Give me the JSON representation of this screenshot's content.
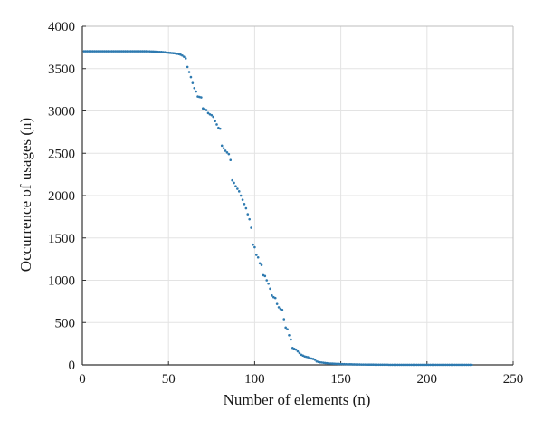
{
  "chart_data": {
    "type": "scatter",
    "title": "",
    "xlabel": "Number of elements (n)",
    "ylabel": "Occurrence of usages (n)",
    "xlim": [
      0,
      250
    ],
    "ylim": [
      0,
      4000
    ],
    "xticks": [
      0,
      50,
      100,
      150,
      200,
      250
    ],
    "yticks": [
      0,
      500,
      1000,
      1500,
      2000,
      2500,
      3000,
      3500,
      4000
    ],
    "grid": true,
    "marker_color": "#2e7ab0",
    "series": [
      {
        "name": "",
        "points": [
          [
            1,
            3705
          ],
          [
            2,
            3705
          ],
          [
            3,
            3705
          ],
          [
            4,
            3705
          ],
          [
            5,
            3705
          ],
          [
            6,
            3705
          ],
          [
            7,
            3705
          ],
          [
            8,
            3705
          ],
          [
            9,
            3705
          ],
          [
            10,
            3705
          ],
          [
            11,
            3705
          ],
          [
            12,
            3705
          ],
          [
            13,
            3705
          ],
          [
            14,
            3705
          ],
          [
            15,
            3705
          ],
          [
            16,
            3705
          ],
          [
            17,
            3705
          ],
          [
            18,
            3705
          ],
          [
            19,
            3705
          ],
          [
            20,
            3705
          ],
          [
            21,
            3705
          ],
          [
            22,
            3705
          ],
          [
            23,
            3705
          ],
          [
            24,
            3705
          ],
          [
            25,
            3705
          ],
          [
            26,
            3705
          ],
          [
            27,
            3705
          ],
          [
            28,
            3705
          ],
          [
            29,
            3705
          ],
          [
            30,
            3705
          ],
          [
            31,
            3705
          ],
          [
            32,
            3705
          ],
          [
            33,
            3705
          ],
          [
            34,
            3705
          ],
          [
            35,
            3705
          ],
          [
            36,
            3705
          ],
          [
            37,
            3705
          ],
          [
            38,
            3704
          ],
          [
            39,
            3704
          ],
          [
            40,
            3703
          ],
          [
            41,
            3702
          ],
          [
            42,
            3701
          ],
          [
            43,
            3700
          ],
          [
            44,
            3699
          ],
          [
            45,
            3698
          ],
          [
            46,
            3697
          ],
          [
            47,
            3695
          ],
          [
            48,
            3693
          ],
          [
            49,
            3690
          ],
          [
            50,
            3688
          ],
          [
            51,
            3686
          ],
          [
            52,
            3684
          ],
          [
            53,
            3682
          ],
          [
            54,
            3680
          ],
          [
            55,
            3676
          ],
          [
            56,
            3672
          ],
          [
            57,
            3665
          ],
          [
            58,
            3655
          ],
          [
            59,
            3640
          ],
          [
            60,
            3620
          ],
          [
            61,
            3520
          ],
          [
            62,
            3460
          ],
          [
            63,
            3400
          ],
          [
            64,
            3330
          ],
          [
            65,
            3270
          ],
          [
            66,
            3230
          ],
          [
            67,
            3170
          ],
          [
            68,
            3165
          ],
          [
            69,
            3160
          ],
          [
            70,
            3030
          ],
          [
            71,
            3020
          ],
          [
            72,
            3010
          ],
          [
            73,
            2975
          ],
          [
            74,
            2960
          ],
          [
            75,
            2950
          ],
          [
            76,
            2930
          ],
          [
            77,
            2880
          ],
          [
            78,
            2840
          ],
          [
            79,
            2800
          ],
          [
            80,
            2790
          ],
          [
            81,
            2590
          ],
          [
            82,
            2560
          ],
          [
            83,
            2530
          ],
          [
            84,
            2510
          ],
          [
            85,
            2490
          ],
          [
            86,
            2420
          ],
          [
            87,
            2180
          ],
          [
            88,
            2150
          ],
          [
            89,
            2110
          ],
          [
            90,
            2080
          ],
          [
            91,
            2050
          ],
          [
            92,
            2000
          ],
          [
            93,
            1950
          ],
          [
            94,
            1900
          ],
          [
            95,
            1850
          ],
          [
            96,
            1780
          ],
          [
            97,
            1720
          ],
          [
            98,
            1620
          ],
          [
            99,
            1420
          ],
          [
            100,
            1390
          ],
          [
            101,
            1300
          ],
          [
            102,
            1270
          ],
          [
            103,
            1200
          ],
          [
            104,
            1180
          ],
          [
            105,
            1060
          ],
          [
            106,
            1050
          ],
          [
            107,
            1000
          ],
          [
            108,
            960
          ],
          [
            109,
            900
          ],
          [
            110,
            820
          ],
          [
            111,
            800
          ],
          [
            112,
            790
          ],
          [
            113,
            720
          ],
          [
            114,
            680
          ],
          [
            115,
            660
          ],
          [
            116,
            650
          ],
          [
            117,
            540
          ],
          [
            118,
            440
          ],
          [
            119,
            420
          ],
          [
            120,
            350
          ],
          [
            121,
            300
          ],
          [
            122,
            200
          ],
          [
            123,
            190
          ],
          [
            124,
            180
          ],
          [
            125,
            160
          ],
          [
            126,
            140
          ],
          [
            127,
            120
          ],
          [
            128,
            110
          ],
          [
            129,
            100
          ],
          [
            130,
            95
          ],
          [
            131,
            90
          ],
          [
            132,
            80
          ],
          [
            133,
            75
          ],
          [
            134,
            70
          ],
          [
            135,
            60
          ],
          [
            136,
            40
          ],
          [
            137,
            35
          ],
          [
            138,
            30
          ],
          [
            139,
            28
          ],
          [
            140,
            25
          ],
          [
            141,
            22
          ],
          [
            142,
            20
          ],
          [
            143,
            18
          ],
          [
            144,
            16
          ],
          [
            145,
            15
          ],
          [
            146,
            14
          ],
          [
            147,
            13
          ],
          [
            148,
            12
          ],
          [
            149,
            11
          ],
          [
            150,
            10
          ],
          [
            151,
            9
          ],
          [
            152,
            9
          ],
          [
            153,
            8
          ],
          [
            154,
            8
          ],
          [
            155,
            7
          ],
          [
            156,
            7
          ],
          [
            157,
            6
          ],
          [
            158,
            6
          ],
          [
            159,
            5
          ],
          [
            160,
            5
          ],
          [
            161,
            5
          ],
          [
            162,
            4
          ],
          [
            163,
            4
          ],
          [
            164,
            4
          ],
          [
            165,
            3
          ],
          [
            166,
            3
          ],
          [
            167,
            3
          ],
          [
            168,
            3
          ],
          [
            169,
            3
          ],
          [
            170,
            2
          ],
          [
            171,
            2
          ],
          [
            172,
            2
          ],
          [
            173,
            2
          ],
          [
            174,
            2
          ],
          [
            175,
            2
          ],
          [
            176,
            2
          ],
          [
            177,
            2
          ],
          [
            178,
            1
          ],
          [
            179,
            1
          ],
          [
            180,
            1
          ],
          [
            181,
            1
          ],
          [
            182,
            1
          ],
          [
            183,
            1
          ],
          [
            184,
            1
          ],
          [
            185,
            1
          ],
          [
            186,
            1
          ],
          [
            187,
            1
          ],
          [
            188,
            1
          ],
          [
            189,
            1
          ],
          [
            190,
            1
          ],
          [
            191,
            1
          ],
          [
            192,
            1
          ],
          [
            193,
            1
          ],
          [
            194,
            1
          ],
          [
            195,
            1
          ],
          [
            196,
            1
          ],
          [
            197,
            1
          ],
          [
            198,
            1
          ],
          [
            199,
            1
          ],
          [
            200,
            1
          ],
          [
            201,
            1
          ],
          [
            202,
            1
          ],
          [
            203,
            1
          ],
          [
            204,
            1
          ],
          [
            205,
            1
          ],
          [
            206,
            1
          ],
          [
            207,
            1
          ],
          [
            208,
            1
          ],
          [
            209,
            1
          ],
          [
            210,
            1
          ],
          [
            211,
            1
          ],
          [
            212,
            1
          ],
          [
            213,
            1
          ],
          [
            214,
            1
          ],
          [
            215,
            1
          ],
          [
            216,
            1
          ],
          [
            217,
            1
          ],
          [
            218,
            1
          ],
          [
            219,
            1
          ],
          [
            220,
            1
          ],
          [
            221,
            1
          ],
          [
            222,
            1
          ],
          [
            223,
            1
          ],
          [
            224,
            1
          ],
          [
            225,
            1
          ],
          [
            226,
            1
          ]
        ]
      }
    ]
  }
}
